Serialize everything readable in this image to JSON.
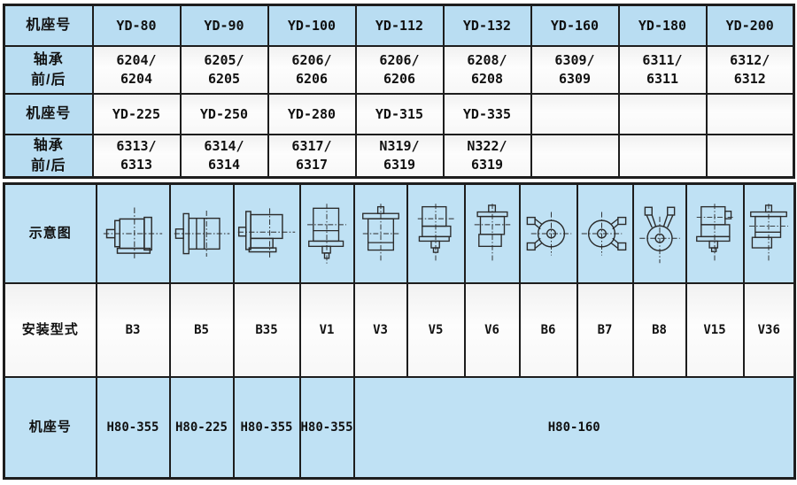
{
  "colors": {
    "cell_blue": "#b9ddf2",
    "cell_white": "#f8f8f8",
    "border_dark": "#1d1d1d",
    "diagram_line": "#2b2b2b"
  },
  "bearing_table": {
    "row1": {
      "label": "机座号",
      "cells": [
        "YD-80",
        "YD-90",
        "YD-100",
        "YD-112",
        "YD-132",
        "YD-160",
        "YD-180",
        "YD-200"
      ]
    },
    "row2": {
      "label": "轴承\n前/后",
      "cells": [
        "6204/\n6204",
        "6205/\n6205",
        "6206/\n6206",
        "6206/\n6206",
        "6208/\n6208",
        "6309/\n6309",
        "6311/\n6311",
        "6312/\n6312"
      ]
    },
    "row3": {
      "label": "机座号",
      "cells": [
        "YD-225",
        "YD-250",
        "YD-280",
        "YD-315",
        "YD-335",
        "",
        "",
        ""
      ]
    },
    "row4": {
      "label": "轴承\n前/后",
      "cells": [
        "6313/\n6313",
        "6314/\n6314",
        "6317/\n6317",
        "N319/\n6319",
        "N322/\n6319",
        "",
        "",
        ""
      ]
    }
  },
  "mounting_table": {
    "diagram_row_label": "示意图",
    "type_row_label": "安装型式",
    "frame_row_label": "机座号",
    "mounting_types": [
      "B3",
      "B5",
      "B35",
      "V1",
      "V3",
      "V5",
      "V6",
      "B6",
      "B7",
      "B8",
      "V15",
      "V36"
    ],
    "frame_cells": [
      "H80-355",
      "H80-225",
      "H80-355",
      "H80-355"
    ],
    "frame_span_cell": "H80-160"
  }
}
